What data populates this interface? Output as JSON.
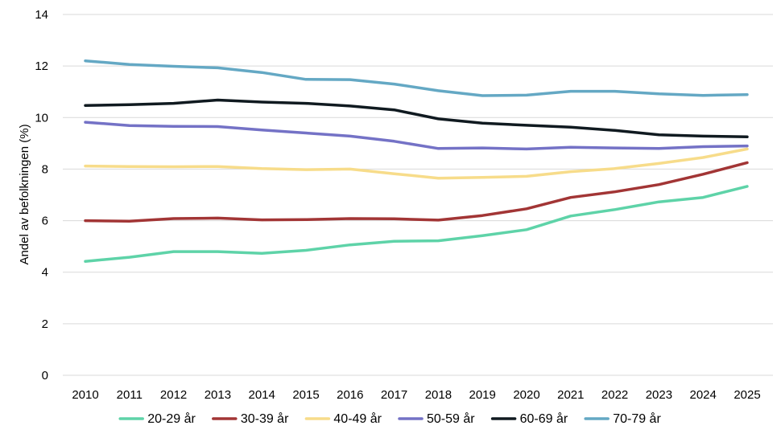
{
  "chart_data": {
    "type": "line",
    "ylabel": "Andel av befolkningen (%)",
    "xlabel": "",
    "ylim": [
      0,
      14
    ],
    "yticks": [
      0,
      2,
      4,
      6,
      8,
      10,
      12,
      14
    ],
    "grid": true,
    "legend_position": "bottom",
    "x": [
      "2010",
      "2011",
      "2012",
      "2013",
      "2014",
      "2015",
      "2016",
      "2017",
      "2018",
      "2019",
      "2020",
      "2021",
      "2022",
      "2023",
      "2024",
      "2025"
    ],
    "series": [
      {
        "name": "20-29 år",
        "color": "#5ed3a8",
        "values": [
          4.42,
          4.58,
          4.8,
          4.8,
          4.73,
          4.85,
          5.06,
          5.2,
          5.22,
          5.42,
          5.65,
          6.18,
          6.43,
          6.73,
          6.9,
          7.33
        ]
      },
      {
        "name": "30-39 år",
        "color": "#a23535",
        "values": [
          6.0,
          5.98,
          6.08,
          6.1,
          6.03,
          6.04,
          6.08,
          6.07,
          6.02,
          6.2,
          6.46,
          6.9,
          7.12,
          7.4,
          7.8,
          8.25
        ]
      },
      {
        "name": "40-49 år",
        "color": "#f7dc8a",
        "values": [
          8.12,
          8.1,
          8.09,
          8.1,
          8.02,
          7.98,
          8.0,
          7.82,
          7.65,
          7.68,
          7.72,
          7.9,
          8.02,
          8.22,
          8.45,
          8.78
        ]
      },
      {
        "name": "50-59 år",
        "color": "#7472c6",
        "values": [
          9.82,
          9.69,
          9.66,
          9.65,
          9.52,
          9.4,
          9.28,
          9.08,
          8.8,
          8.82,
          8.78,
          8.85,
          8.82,
          8.8,
          8.87,
          8.9
        ]
      },
      {
        "name": "60-69 år",
        "color": "#101a20",
        "values": [
          10.47,
          10.5,
          10.55,
          10.68,
          10.6,
          10.55,
          10.45,
          10.3,
          9.95,
          9.78,
          9.7,
          9.63,
          9.5,
          9.33,
          9.28,
          9.25
        ]
      },
      {
        "name": "70-79 år",
        "color": "#64a8c4",
        "values": [
          12.2,
          12.06,
          11.99,
          11.93,
          11.75,
          11.48,
          11.47,
          11.3,
          11.04,
          10.85,
          10.87,
          11.02,
          11.02,
          10.92,
          10.86,
          10.89
        ]
      }
    ]
  }
}
